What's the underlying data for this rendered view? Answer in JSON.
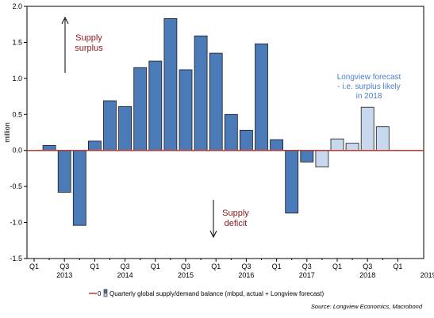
{
  "chart_data": {
    "type": "bar",
    "ylabel": "million",
    "ylim": [
      -1.5,
      2.0
    ],
    "yticks": [
      2.0,
      1.5,
      1.0,
      0.5,
      0.0,
      -0.5,
      -1.0,
      -1.5
    ],
    "ytick_labels": [
      "2.0",
      "1.5",
      "1.0",
      "0.5",
      "0.0",
      "-0.5",
      "-1.0",
      "-1.5"
    ],
    "quarter_labels": [
      "Q1",
      "Q3",
      "Q1",
      "Q3",
      "Q1",
      "Q3",
      "Q1",
      "Q3",
      "Q1",
      "Q3",
      "Q1",
      "Q3",
      "Q1"
    ],
    "year_labels": [
      "2013",
      "2014",
      "2015",
      "2016",
      "2017",
      "2018",
      "2019"
    ],
    "categories": [
      "2013 Q1",
      "2013 Q2",
      "2013 Q3",
      "2013 Q4",
      "2014 Q1",
      "2014 Q2",
      "2014 Q3",
      "2014 Q4",
      "2015 Q1",
      "2015 Q2",
      "2015 Q3",
      "2015 Q4",
      "2016 Q1",
      "2016 Q2",
      "2016 Q3",
      "2016 Q4",
      "2017 Q1",
      "2017 Q2",
      "2017 Q3",
      "2017 Q4",
      "2018 Q1",
      "2018 Q2",
      "2018 Q3",
      "2018 Q4"
    ],
    "series": [
      {
        "name": "Quarterly global supply/demand balance (mbpd, actual + Longview forecast)",
        "values": [
          0.0,
          0.07,
          -0.58,
          -1.04,
          0.13,
          0.69,
          0.61,
          1.15,
          1.24,
          1.83,
          1.12,
          1.59,
          1.35,
          0.5,
          0.28,
          1.48,
          0.15,
          -0.87,
          -0.16,
          -0.23,
          0.16,
          0.1,
          0.6,
          0.33
        ],
        "forecast_flags": [
          false,
          false,
          false,
          false,
          false,
          false,
          false,
          false,
          false,
          false,
          false,
          false,
          false,
          false,
          false,
          false,
          false,
          false,
          false,
          true,
          true,
          true,
          true,
          true
        ]
      }
    ],
    "zero_line_label": "0",
    "annotations": {
      "surplus": [
        "Supply",
        "surplus"
      ],
      "deficit": [
        "Supply",
        "deficit"
      ],
      "forecast": [
        "Longview forecast",
        "- i.e. surplus likely",
        "in 2018"
      ]
    },
    "source": "Source: Longview Economics, Macrobond",
    "colors": {
      "actual_fill": "#4a7ab8",
      "forecast_fill": "#c8d8ee",
      "bar_stroke": "#1a1a1a",
      "zero_line": "#c0392b",
      "annotation_red": "#8b1a1a",
      "annotation_blue": "#4a7ec9"
    }
  }
}
